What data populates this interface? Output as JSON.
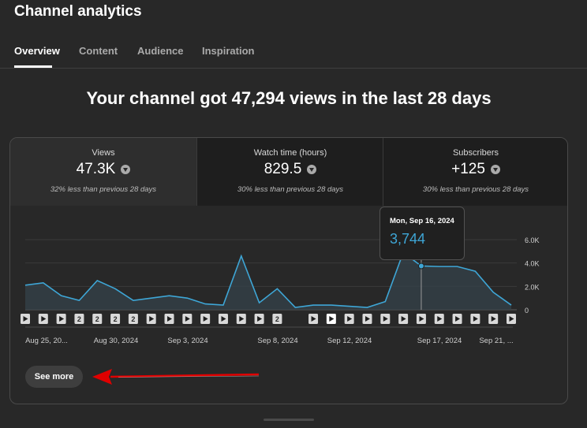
{
  "header": {
    "title": "Channel analytics"
  },
  "tabs": [
    {
      "label": "Overview",
      "active": true
    },
    {
      "label": "Content",
      "active": false
    },
    {
      "label": "Audience",
      "active": false
    },
    {
      "label": "Inspiration",
      "active": false
    }
  ],
  "headline": "Your channel got 47,294 views in the last 28 days",
  "metrics": [
    {
      "label": "Views",
      "value": "47.3K",
      "comparison": "32% less than previous 28 days",
      "trend_icon": "down-arrow-icon"
    },
    {
      "label": "Watch time (hours)",
      "value": "829.5",
      "comparison": "30% less than previous 28 days",
      "trend_icon": "down-arrow-icon"
    },
    {
      "label": "Subscribers",
      "value": "+125",
      "comparison": "30% less than previous 28 days",
      "trend_icon": "down-arrow-icon"
    }
  ],
  "tooltip": {
    "date": "Mon, Sep 16, 2024",
    "value": "3,744"
  },
  "see_more_label": "See more",
  "colors": {
    "accent": "#3ea6d6",
    "arrow": "#e00000",
    "background": "#282828"
  },
  "chart_data": {
    "type": "area",
    "ylim": [
      0,
      6000
    ],
    "y_ticks": [
      "6.0K",
      "4.0K",
      "2.0K",
      "0"
    ],
    "x_tick_labels": [
      "Aug 25, 20...",
      "Aug 30, 2024",
      "Sep 3, 2024",
      "Sep 8, 2024",
      "Sep 12, 2024",
      "Sep 17, 2024",
      "Sep 21, ..."
    ],
    "series": [
      {
        "values": [
          2100,
          2300,
          1200,
          800,
          2500,
          1800,
          800,
          1000,
          1200,
          1000,
          500,
          400,
          4600,
          600,
          1800,
          200,
          400,
          400,
          300,
          200,
          700,
          4900,
          3744,
          3700,
          3700,
          3300,
          1500,
          400
        ]
      }
    ],
    "highlight": {
      "date": "Mon, Sep 16, 2024",
      "value": 3744
    },
    "markers": [
      "video",
      "video",
      "video",
      "2",
      "2",
      "2",
      "2",
      "video",
      "video",
      "video",
      "video",
      "video",
      "video",
      "video",
      "2",
      "",
      "video",
      "video-selected",
      "video",
      "video",
      "video",
      "video",
      "video",
      "video",
      "video",
      "video",
      "video",
      "video"
    ]
  }
}
